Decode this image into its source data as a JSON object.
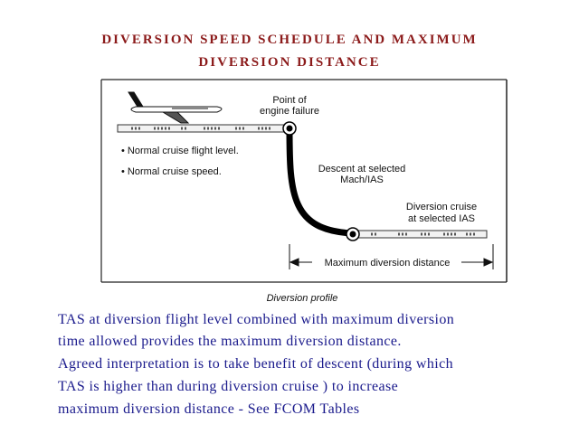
{
  "title": {
    "line1": "DIVERSION SPEED SCHEDULE AND MAXIMUM",
    "line2": "DIVERSION DISTANCE"
  },
  "diagram": {
    "engine_failure_line1": "Point of",
    "engine_failure_line2": "engine failure",
    "bullet_level": "• Normal cruise flight level.",
    "bullet_speed": "• Normal cruise speed.",
    "descent_line1": "Descent at selected",
    "descent_line2": "Mach/IAS",
    "diversion_line1": "Diversion cruise",
    "diversion_line2": "at selected IAS",
    "max_distance": "Maximum diversion distance",
    "caption": "Diversion profile"
  },
  "text": {
    "line1": "TAS at diversion flight level combined with maximum diversion",
    "line2": "time allowed provides the maximum diversion distance.",
    "line3": "Agreed interpretation is to take benefit of descent (during which",
    "line4": "TAS is higher than during diversion cruise ) to increase",
    "line5": "maximum diversion distance  -  See FCOM Tables"
  },
  "colors": {
    "title": "#8b1a1a",
    "body_text": "#1a1a8c",
    "diagram_ink": "#111111"
  }
}
